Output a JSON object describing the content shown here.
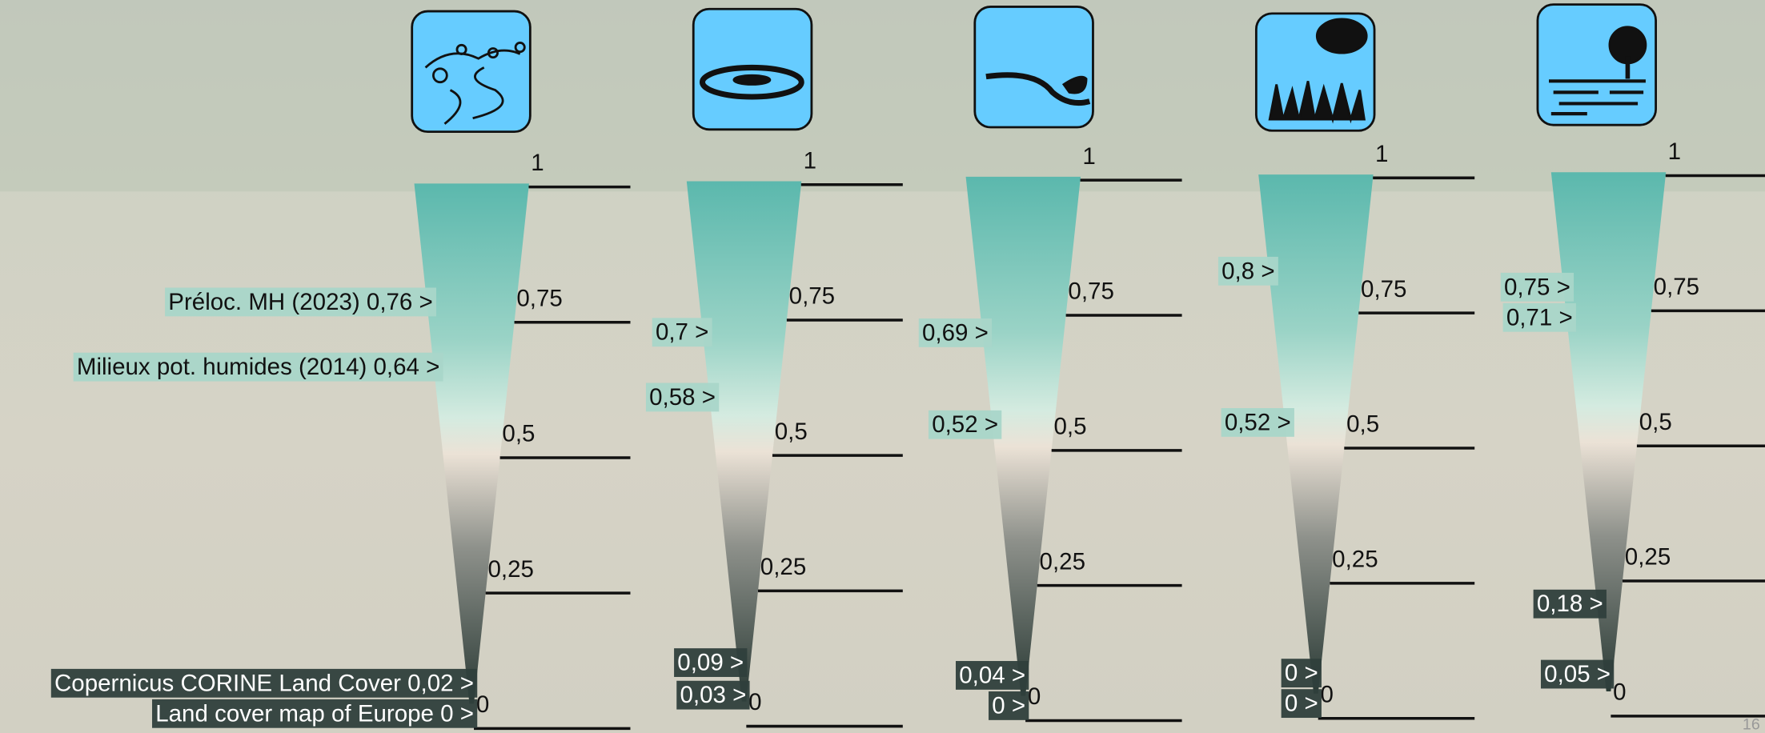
{
  "chart_data": [
    {
      "type": "gauge",
      "ylim": [
        0,
        1
      ],
      "yticks": [
        1,
        {
          "value": 0.75,
          "label": "0,75"
        },
        {
          "value": 0.5,
          "label": "0,5"
        },
        {
          "value": 0.25,
          "label": "0,25"
        },
        0
      ],
      "markers": [
        {
          "label": "Préloc. MH (2023) 0,76 >",
          "value": 0.76
        },
        {
          "label": "Milieux pot. humides (2014) 0,64 >",
          "value": 0.64
        },
        {
          "label": "Copernicus  CORINE Land Cover 0,02 >",
          "value": 0.02
        },
        {
          "label": "Land cover map of Europe 0 >",
          "value": 0
        }
      ]
    },
    {
      "type": "gauge",
      "ylim": [
        0,
        1
      ],
      "yticks": [
        1,
        {
          "value": 0.75,
          "label": "0,75"
        },
        {
          "value": 0.5,
          "label": "0,5"
        },
        {
          "value": 0.25,
          "label": "0,25"
        },
        0
      ],
      "markers": [
        {
          "label": "0,7 >",
          "value": 0.7
        },
        {
          "label": "0,58 >",
          "value": 0.58
        },
        {
          "label": "0,09 >",
          "value": 0.09
        },
        {
          "label": "0,03 >",
          "value": 0.03
        }
      ]
    },
    {
      "type": "gauge",
      "ylim": [
        0,
        1
      ],
      "yticks": [
        1,
        {
          "value": 0.75,
          "label": "0,75"
        },
        {
          "value": 0.5,
          "label": "0,5"
        },
        {
          "value": 0.25,
          "label": "0,25"
        },
        0
      ],
      "markers": [
        {
          "label": "0,69 >",
          "value": 0.69
        },
        {
          "label": "0,52 >",
          "value": 0.52
        },
        {
          "label": "0,04 >",
          "value": 0.04
        },
        {
          "label": "0 >",
          "value": 0
        }
      ]
    },
    {
      "type": "gauge",
      "ylim": [
        0,
        1
      ],
      "yticks": [
        1,
        {
          "value": 0.75,
          "label": "0,75"
        },
        {
          "value": 0.5,
          "label": "0,5"
        },
        {
          "value": 0.25,
          "label": "0,25"
        },
        0
      ],
      "markers": [
        {
          "label": "0,8 >",
          "value": 0.8
        },
        {
          "label": "0,52 >",
          "value": 0.52
        },
        {
          "label": "0 >",
          "value": 0
        },
        {
          "label": "0 >",
          "value": 0
        }
      ]
    },
    {
      "type": "gauge",
      "ylim": [
        0,
        1
      ],
      "yticks": [
        1,
        {
          "value": 0.75,
          "label": "0,75"
        },
        {
          "value": 0.5,
          "label": "0,5"
        },
        {
          "value": 0.25,
          "label": "0,25"
        },
        0
      ],
      "markers": [
        {
          "label": "0,75 >",
          "value": 0.75
        },
        {
          "label": "0,71 >",
          "value": 0.71
        },
        {
          "label": "0,18 >",
          "value": 0.18
        },
        {
          "label": "0,05 >",
          "value": 0.05
        }
      ]
    }
  ]
}
